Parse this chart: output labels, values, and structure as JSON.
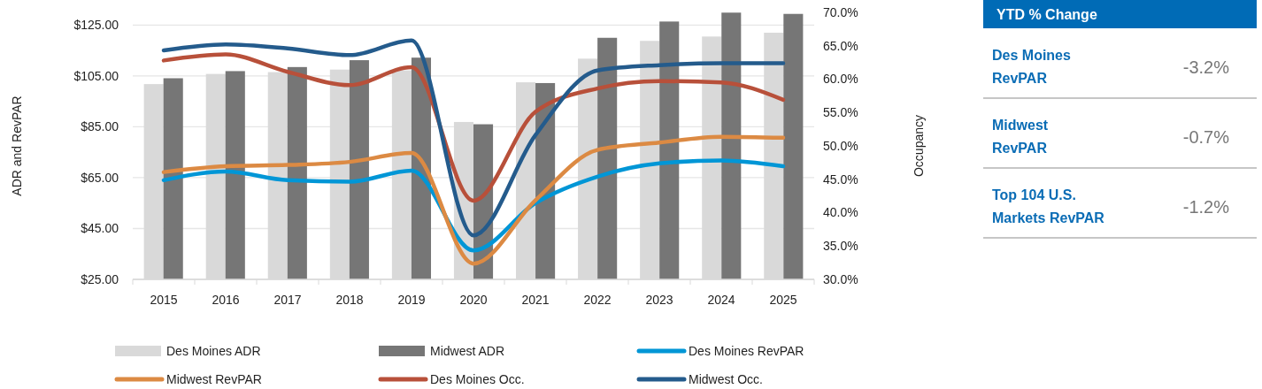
{
  "chart_data": [
    {
      "type": "bar",
      "ylabel": "ADR and RevPAR",
      "y2label": "Occupancy",
      "categories": [
        "2015",
        "2016",
        "2017",
        "2018",
        "2019",
        "2020",
        "2021",
        "2022",
        "2023",
        "2024",
        "2025"
      ],
      "series": [
        {
          "name": "Des Moines ADR",
          "type": "bar",
          "color": "#d9d9d9",
          "values": [
            101.8,
            105.8,
            106.5,
            107.5,
            107.2,
            86.9,
            102.5,
            111.8,
            118.8,
            120.5,
            122.0
          ]
        },
        {
          "name": "Midwest ADR",
          "type": "bar",
          "color": "#767676",
          "values": [
            104.1,
            106.9,
            108.5,
            111.2,
            112.2,
            86.0,
            102.2,
            120.0,
            126.4,
            129.9,
            129.4
          ]
        },
        {
          "name": "Des Moines RevPAR",
          "type": "line",
          "color": "#0096d6",
          "values": [
            64.0,
            67.4,
            64.0,
            63.4,
            67.8,
            36.4,
            55.0,
            65.4,
            70.6,
            71.8,
            69.5
          ]
        },
        {
          "name": "Midwest RevPAR",
          "type": "line",
          "color": "#dc8a43",
          "values": [
            67.2,
            69.5,
            70.0,
            71.2,
            74.7,
            31.2,
            56.1,
            75.9,
            78.8,
            81.1,
            80.7
          ]
        },
        {
          "name": "Des Moines Occ.",
          "type": "line",
          "axis": "y2",
          "color": "#b8503a",
          "values": [
            62.8,
            63.7,
            61.1,
            59.1,
            61.8,
            41.8,
            55.1,
            58.6,
            59.7,
            59.5,
            56.9
          ]
        },
        {
          "name": "Midwest Occ.",
          "type": "line",
          "axis": "y2",
          "color": "#245b8c",
          "values": [
            64.3,
            65.2,
            64.6,
            63.6,
            65.8,
            36.6,
            51.6,
            61.3,
            62.1,
            62.4,
            62.4
          ]
        }
      ],
      "ylim": [
        25,
        130
      ],
      "yticks": [
        {
          "value": 25,
          "label": "$25.00"
        },
        {
          "value": 45,
          "label": "$45.00"
        },
        {
          "value": 65,
          "label": "$65.00"
        },
        {
          "value": 85,
          "label": "$85.00"
        },
        {
          "value": 105,
          "label": "$105.00"
        },
        {
          "value": 125,
          "label": "$125.00"
        }
      ],
      "y2lim": [
        30,
        70
      ],
      "y2ticks": [
        {
          "value": 30,
          "label": "30.0%"
        },
        {
          "value": 35,
          "label": "35.0%"
        },
        {
          "value": 40,
          "label": "40.0%"
        },
        {
          "value": 45,
          "label": "45.0%"
        },
        {
          "value": 50,
          "label": "50.0%"
        },
        {
          "value": 55,
          "label": "55.0%"
        },
        {
          "value": 60,
          "label": "60.0%"
        },
        {
          "value": 65,
          "label": "65.0%"
        },
        {
          "value": 70,
          "label": "70.0%"
        }
      ],
      "grid": "y",
      "legend": "bottom",
      "marker": "none",
      "line_style": "solid"
    },
    {
      "type": "other",
      "title": "YTD % Change",
      "categories": [
        "Des Moines RevPAR",
        "Midwest RevPAR",
        "Top 104 U.S. Markets RevPAR"
      ],
      "value_labels": [
        "-3.2%",
        "-0.7%",
        "-1.2%"
      ]
    }
  ]
}
